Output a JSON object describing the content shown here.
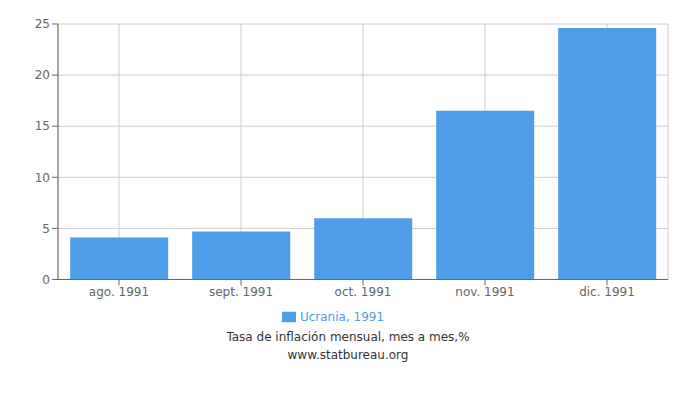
{
  "chart_data": {
    "type": "bar",
    "categories": [
      "ago. 1991",
      "sept. 1991",
      "oct. 1991",
      "nov. 1991",
      "dic. 1991"
    ],
    "series": [
      {
        "name": "Ucrania, 1991",
        "color": "#4d9de8",
        "values": [
          4.1,
          4.7,
          6.0,
          16.5,
          24.6
        ]
      }
    ],
    "ylim": [
      0,
      25
    ],
    "yticks": [
      0,
      5,
      10,
      15,
      20,
      25
    ],
    "grid": true,
    "legend": "bottom",
    "annotations": [
      "Tasa de inflación mensual, mes a mes,%",
      "www.statbureau.org"
    ]
  }
}
